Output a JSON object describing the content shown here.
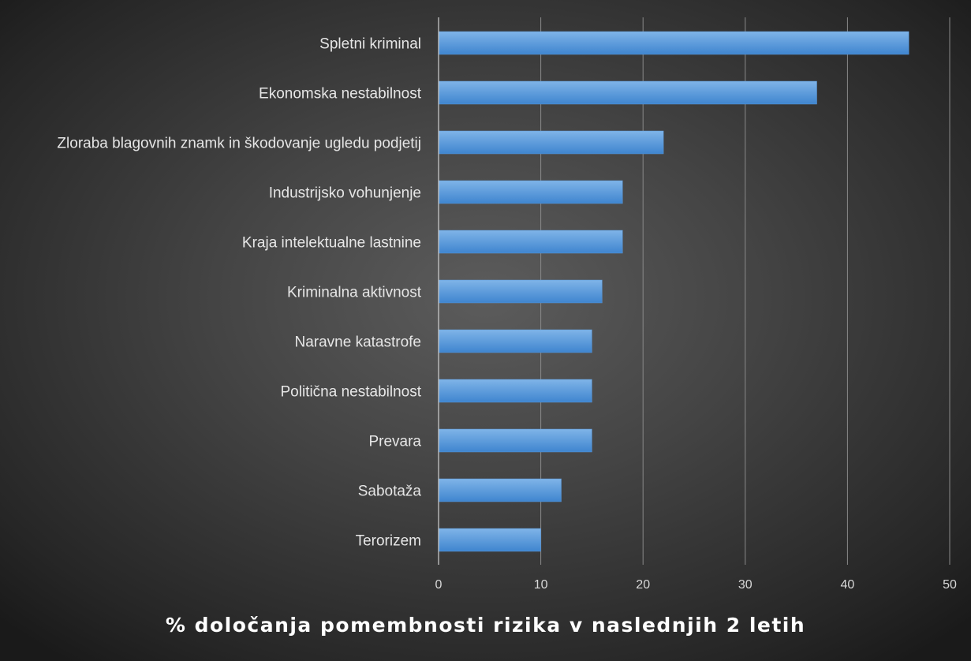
{
  "chart_data": {
    "type": "bar",
    "orientation": "horizontal",
    "title": "",
    "xlabel": "% določanja pomembnosti rizika v naslednjih 2 letih",
    "ylabel": "",
    "categories": [
      "Spletni kriminal",
      "Ekonomska nestabilnost",
      "Zloraba blagovnih znamk in škodovanje ugledu podjetij",
      "Industrijsko vohunjenje",
      "Kraja intelektualne lastnine",
      "Kriminalna aktivnost",
      "Naravne katastrofe",
      "Politična nestabilnost",
      "Prevara",
      "Sabotaža",
      "Terorizem"
    ],
    "values": [
      46,
      37,
      22,
      18,
      18,
      16,
      15,
      15,
      15,
      12,
      10
    ],
    "xlim": [
      0,
      50
    ],
    "xticks": [
      0,
      10,
      20,
      30,
      40,
      50
    ],
    "grid": "vertical",
    "legend": "none",
    "colors": {
      "bar_top": "#7fb4e8",
      "bar_bottom": "#3f85cf",
      "gridline": "#8a8a8a",
      "axis_line": "#d0d0d0",
      "text": "#e6e6e6",
      "title": "#ffffff"
    }
  }
}
